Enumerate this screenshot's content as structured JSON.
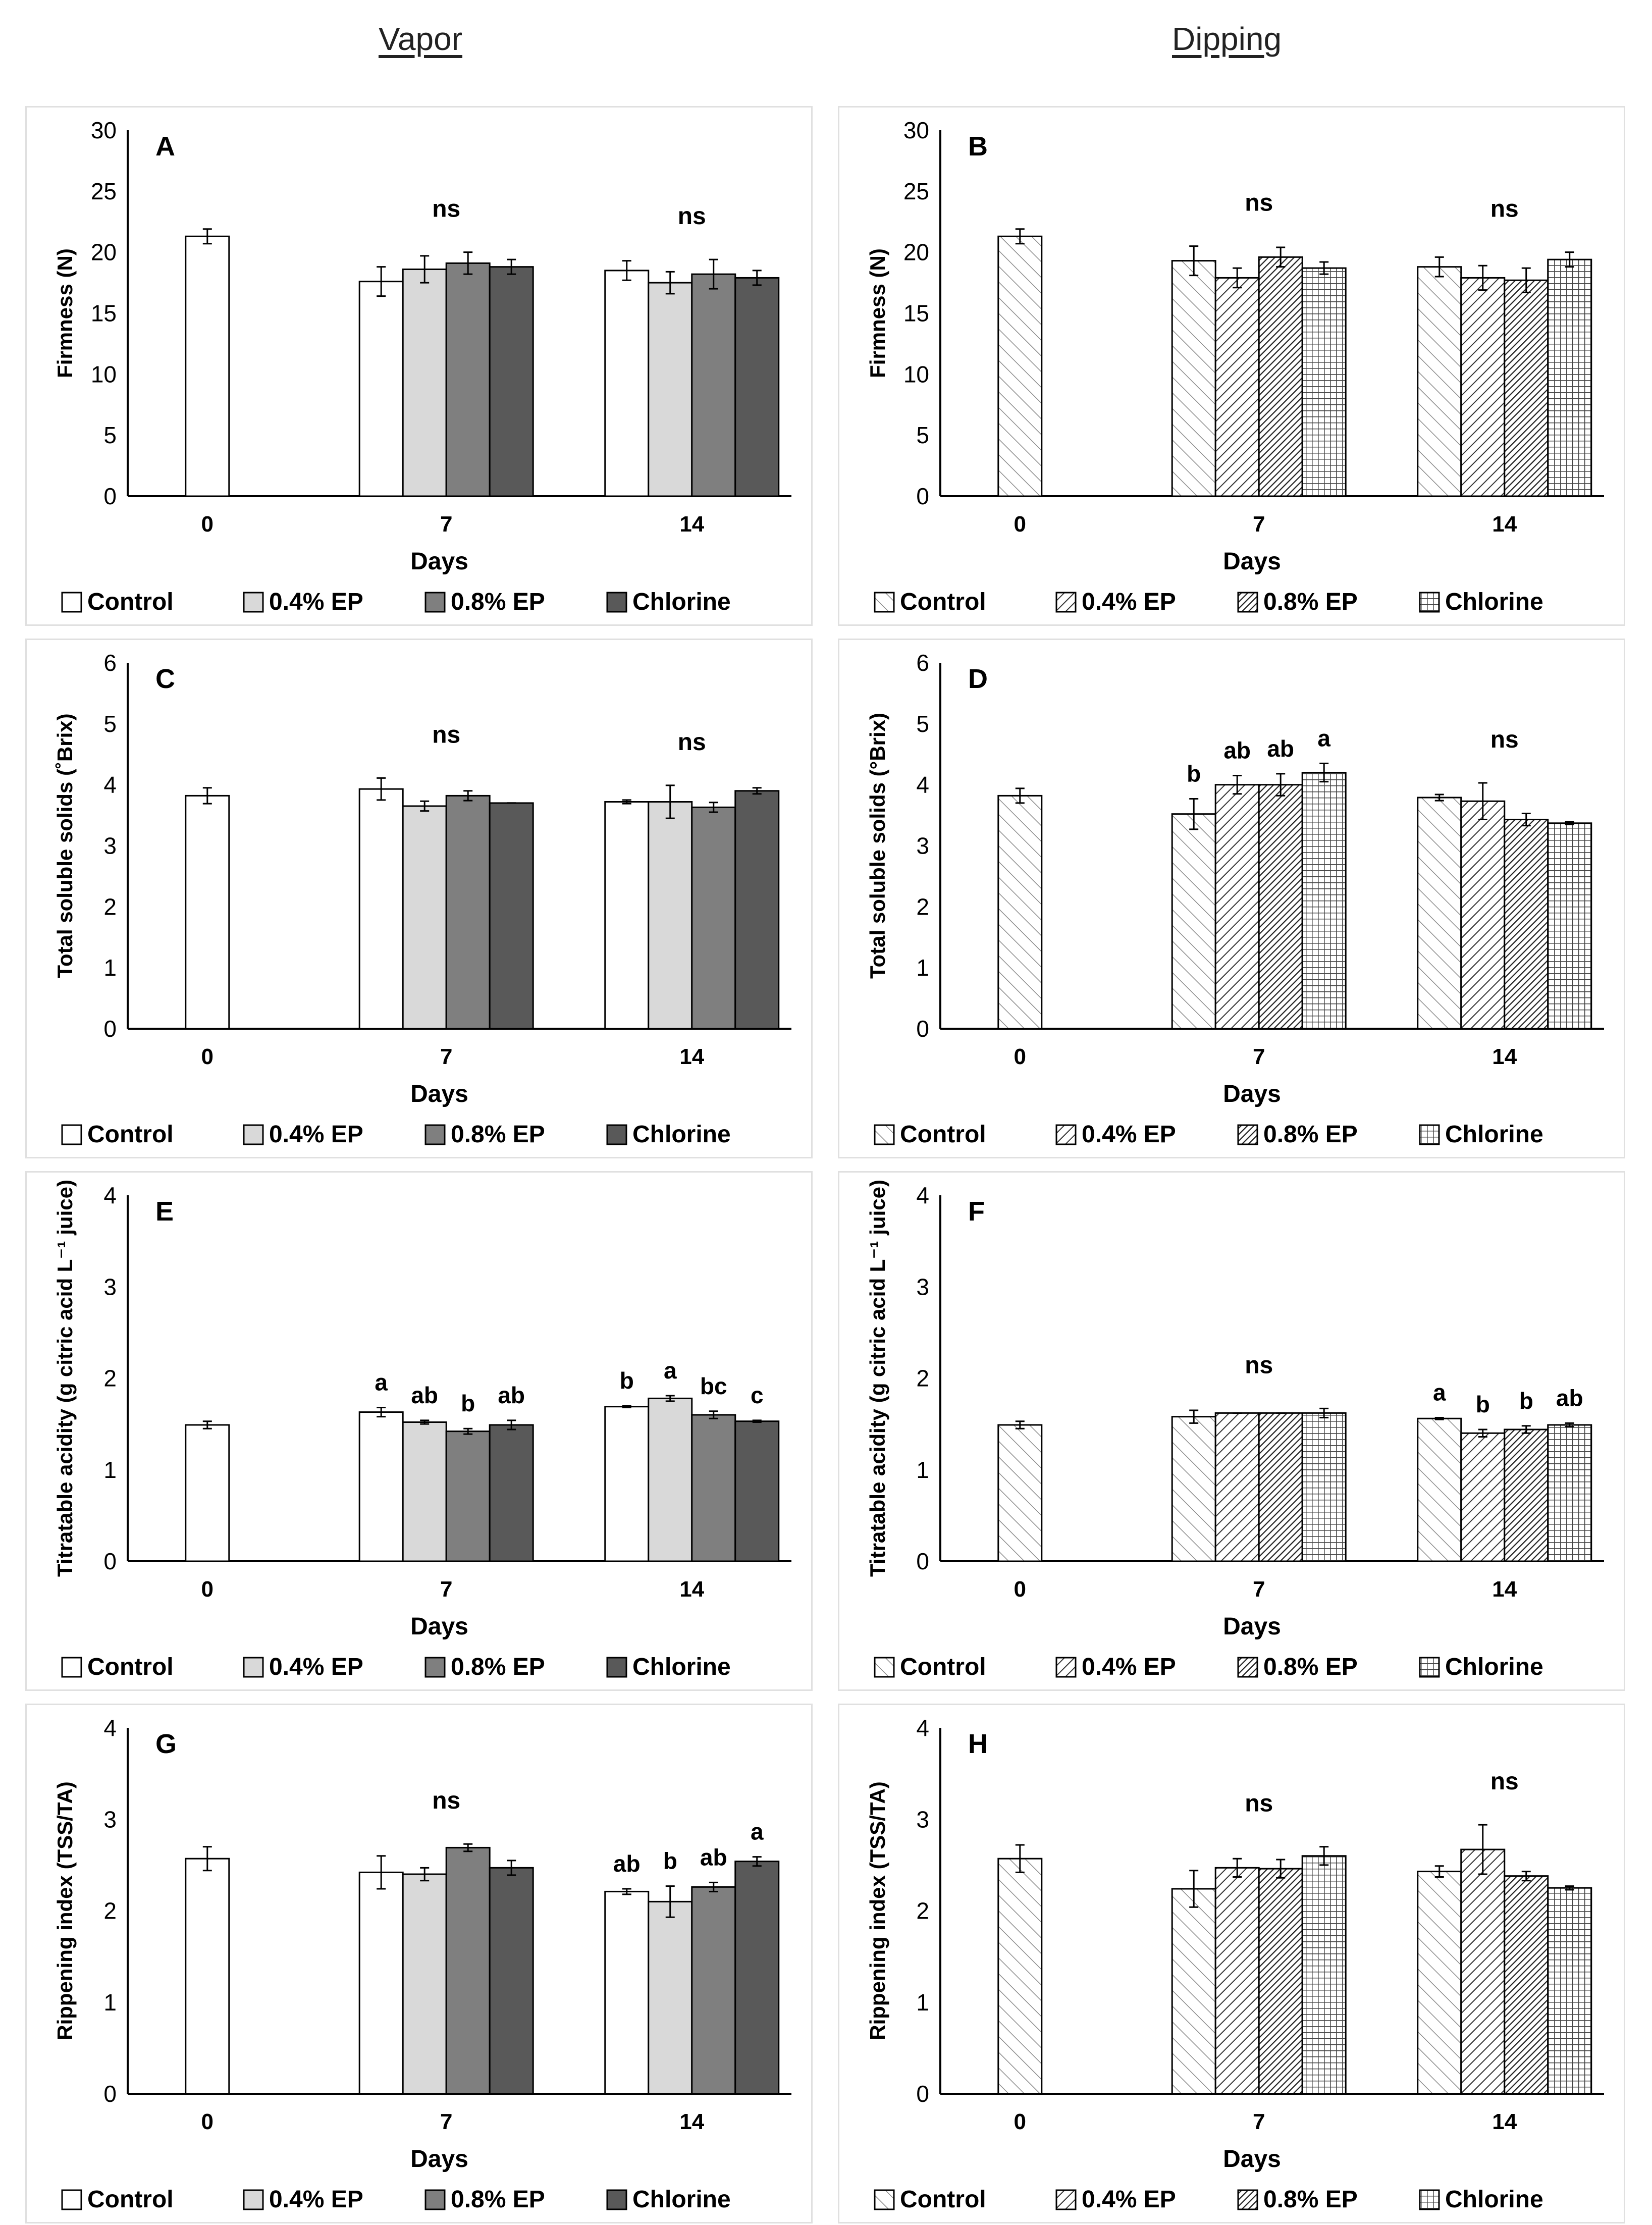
{
  "column_titles": {
    "left": "Vapor",
    "right": "Dipping"
  },
  "patterns_legend": {
    "vapor": [
      "solid-white",
      "solid-lightgray",
      "solid-gray",
      "solid-darkgray"
    ],
    "dipping": [
      "hatch-light",
      "hatch-medium",
      "hatch-dense",
      "crosshatch-grid"
    ]
  },
  "colors": {
    "control": "#ffffff",
    "ep04": "#d9d9d9",
    "ep08": "#7f7f7f",
    "chlorine": "#595959",
    "axis": "#000000"
  },
  "chart_data": [
    {
      "panel": "A",
      "style": "vapor",
      "type": "bar",
      "title": "",
      "xlabel": "Days",
      "ylabel": "Firmness (N)",
      "ylim": [
        0,
        30
      ],
      "yticks": [
        "0",
        "5",
        "10",
        "15",
        "20",
        "25",
        "30"
      ],
      "categories": [
        "0",
        "7",
        "14"
      ],
      "series": [
        {
          "name": "Control",
          "values": [
            21.3,
            17.6,
            18.5
          ],
          "errors": [
            0.6,
            1.2,
            0.8
          ]
        },
        {
          "name": "0.4% EP",
          "values": [
            null,
            18.6,
            17.5
          ],
          "errors": [
            null,
            1.1,
            0.9
          ]
        },
        {
          "name": "0.8% EP",
          "values": [
            null,
            19.1,
            18.2
          ],
          "errors": [
            null,
            0.9,
            1.2
          ]
        },
        {
          "name": "Chlorine",
          "values": [
            null,
            18.8,
            17.9
          ],
          "errors": [
            null,
            0.6,
            0.6
          ]
        }
      ],
      "labels": [
        [
          null,
          null,
          null
        ],
        [
          null,
          null,
          null
        ],
        [
          null,
          null,
          null
        ],
        [
          null,
          null,
          null
        ]
      ],
      "group_labels": [
        null,
        "ns",
        "ns"
      ]
    },
    {
      "panel": "B",
      "style": "dipping",
      "type": "bar",
      "title": "",
      "xlabel": "Days",
      "ylabel": "Firmness (N)",
      "ylim": [
        0,
        30
      ],
      "yticks": [
        "0",
        "5",
        "10",
        "15",
        "20",
        "25",
        "30"
      ],
      "categories": [
        "0",
        "7",
        "14"
      ],
      "series": [
        {
          "name": "Control",
          "values": [
            21.3,
            19.3,
            18.8
          ],
          "errors": [
            0.6,
            1.2,
            0.8
          ]
        },
        {
          "name": "0.4% EP",
          "values": [
            null,
            17.9,
            17.9
          ],
          "errors": [
            null,
            0.8,
            1.0
          ]
        },
        {
          "name": "0.8% EP",
          "values": [
            null,
            19.6,
            17.7
          ],
          "errors": [
            null,
            0.8,
            1.0
          ]
        },
        {
          "name": "Chlorine",
          "values": [
            null,
            18.7,
            19.4
          ],
          "errors": [
            null,
            0.5,
            0.6
          ]
        }
      ],
      "labels": [
        [
          null,
          null,
          null
        ],
        [
          null,
          null,
          null
        ],
        [
          null,
          null,
          null
        ],
        [
          null,
          null,
          null
        ]
      ],
      "group_labels": [
        null,
        "ns",
        "ns"
      ]
    },
    {
      "panel": "C",
      "style": "vapor",
      "type": "bar",
      "title": "",
      "xlabel": "Days",
      "ylabel": "Total soluble solids (˚Brix)",
      "ylim": [
        0,
        6
      ],
      "yticks": [
        "0",
        "1",
        "2",
        "3",
        "4",
        "5",
        "6"
      ],
      "categories": [
        "0",
        "7",
        "14"
      ],
      "series": [
        {
          "name": "Control",
          "values": [
            3.82,
            3.93,
            3.72
          ],
          "errors": [
            0.13,
            0.18,
            0.03
          ]
        },
        {
          "name": "0.4% EP",
          "values": [
            null,
            3.65,
            3.72
          ],
          "errors": [
            null,
            0.08,
            0.27
          ]
        },
        {
          "name": "0.8% EP",
          "values": [
            null,
            3.82,
            3.63
          ],
          "errors": [
            null,
            0.08,
            0.08
          ]
        },
        {
          "name": "Chlorine",
          "values": [
            null,
            3.7,
            3.9
          ],
          "errors": [
            null,
            0,
            0.05
          ]
        }
      ],
      "labels": [
        [
          null,
          null,
          null
        ],
        [
          null,
          null,
          null
        ],
        [
          null,
          null,
          null
        ],
        [
          null,
          null,
          null
        ]
      ],
      "group_labels": [
        null,
        "ns",
        "ns"
      ]
    },
    {
      "panel": "D",
      "style": "dipping",
      "type": "bar",
      "title": "",
      "xlabel": "Days",
      "ylabel": "Total soluble solids (°Brix)",
      "ylim": [
        0,
        6
      ],
      "yticks": [
        "0",
        "1",
        "2",
        "3",
        "4",
        "5",
        "6"
      ],
      "categories": [
        "0",
        "7",
        "14"
      ],
      "series": [
        {
          "name": "Control",
          "values": [
            3.82,
            3.52,
            3.79
          ],
          "errors": [
            0.12,
            0.25,
            0.05
          ]
        },
        {
          "name": "0.4% EP",
          "values": [
            null,
            4.0,
            3.73
          ],
          "errors": [
            null,
            0.15,
            0.3
          ]
        },
        {
          "name": "0.8% EP",
          "values": [
            null,
            4.0,
            3.43
          ],
          "errors": [
            null,
            0.18,
            0.1
          ]
        },
        {
          "name": "Chlorine",
          "values": [
            null,
            4.2,
            3.37
          ],
          "errors": [
            null,
            0.15,
            0.02
          ]
        }
      ],
      "labels": [
        [
          null,
          "b",
          null
        ],
        [
          null,
          "ab",
          null
        ],
        [
          null,
          "ab",
          null
        ],
        [
          null,
          "a",
          null
        ]
      ],
      "group_labels": [
        null,
        null,
        "ns"
      ]
    },
    {
      "panel": "E",
      "style": "vapor",
      "type": "bar",
      "title": "",
      "xlabel": "Days",
      "ylabel": "Titratable acidity (g citric acid L⁻¹ juice)",
      "ylim": [
        0,
        4
      ],
      "yticks": [
        "0",
        "1",
        "2",
        "3",
        "4"
      ],
      "categories": [
        "0",
        "7",
        "14"
      ],
      "series": [
        {
          "name": "Control",
          "values": [
            1.49,
            1.63,
            1.69
          ],
          "errors": [
            0.04,
            0.05,
            0.01
          ]
        },
        {
          "name": "0.4% EP",
          "values": [
            null,
            1.52,
            1.78
          ],
          "errors": [
            null,
            0.02,
            0.03
          ]
        },
        {
          "name": "0.8% EP",
          "values": [
            null,
            1.42,
            1.6
          ],
          "errors": [
            null,
            0.03,
            0.04
          ]
        },
        {
          "name": "Chlorine",
          "values": [
            null,
            1.49,
            1.53
          ],
          "errors": [
            null,
            0.05,
            0.01
          ]
        }
      ],
      "labels": [
        [
          null,
          "a",
          "b"
        ],
        [
          null,
          "ab",
          "a"
        ],
        [
          null,
          "b",
          "bc"
        ],
        [
          null,
          "ab",
          "c"
        ]
      ],
      "group_labels": [
        null,
        null,
        null
      ]
    },
    {
      "panel": "F",
      "style": "dipping",
      "type": "bar",
      "title": "",
      "xlabel": "Days",
      "ylabel": "Titratable acidity (g citric acid L⁻¹ juice)",
      "ylim": [
        0,
        4
      ],
      "yticks": [
        "0",
        "1",
        "2",
        "3",
        "4"
      ],
      "categories": [
        "0",
        "7",
        "14"
      ],
      "series": [
        {
          "name": "Control",
          "values": [
            1.49,
            1.58,
            1.56
          ],
          "errors": [
            0.04,
            0.07,
            0.01
          ]
        },
        {
          "name": "0.4% EP",
          "values": [
            null,
            1.62,
            1.4
          ],
          "errors": [
            null,
            0,
            0.04
          ]
        },
        {
          "name": "0.8% EP",
          "values": [
            null,
            1.62,
            1.44
          ],
          "errors": [
            null,
            0,
            0.04
          ]
        },
        {
          "name": "Chlorine",
          "values": [
            null,
            1.62,
            1.49
          ],
          "errors": [
            null,
            0.05,
            0.02
          ]
        }
      ],
      "labels": [
        [
          null,
          null,
          "a"
        ],
        [
          null,
          null,
          "b"
        ],
        [
          null,
          null,
          "b"
        ],
        [
          null,
          null,
          "ab"
        ]
      ],
      "group_labels": [
        null,
        "ns",
        null
      ]
    },
    {
      "panel": "G",
      "style": "vapor",
      "type": "bar",
      "title": "",
      "xlabel": "Days",
      "ylabel": "Rippening index (TSS/TA)",
      "ylim": [
        0,
        4
      ],
      "yticks": [
        "0",
        "1",
        "2",
        "3",
        "4"
      ],
      "categories": [
        "0",
        "7",
        "14"
      ],
      "series": [
        {
          "name": "Control",
          "values": [
            2.57,
            2.42,
            2.21
          ],
          "errors": [
            0.13,
            0.18,
            0.03
          ]
        },
        {
          "name": "0.4% EP",
          "values": [
            null,
            2.4,
            2.1
          ],
          "errors": [
            null,
            0.07,
            0.17
          ]
        },
        {
          "name": "0.8% EP",
          "values": [
            null,
            2.69,
            2.26
          ],
          "errors": [
            null,
            0.04,
            0.05
          ]
        },
        {
          "name": "Chlorine",
          "values": [
            null,
            2.47,
            2.54
          ],
          "errors": [
            null,
            0.08,
            0.05
          ]
        }
      ],
      "labels": [
        [
          null,
          null,
          "ab"
        ],
        [
          null,
          null,
          "b"
        ],
        [
          null,
          null,
          "ab"
        ],
        [
          null,
          null,
          "a"
        ]
      ],
      "group_labels": [
        null,
        "ns",
        null
      ]
    },
    {
      "panel": "H",
      "style": "dipping",
      "type": "bar",
      "title": "",
      "xlabel": "Days",
      "ylabel": "Rippening index (TSS/TA)",
      "ylim": [
        0,
        4
      ],
      "yticks": [
        "0",
        "1",
        "2",
        "3",
        "4"
      ],
      "categories": [
        "0",
        "7",
        "14"
      ],
      "series": [
        {
          "name": "Control",
          "values": [
            2.57,
            2.24,
            2.43
          ],
          "errors": [
            0.15,
            0.2,
            0.06
          ]
        },
        {
          "name": "0.4% EP",
          "values": [
            null,
            2.47,
            2.67
          ],
          "errors": [
            null,
            0.1,
            0.27
          ]
        },
        {
          "name": "0.8% EP",
          "values": [
            null,
            2.46,
            2.38
          ],
          "errors": [
            null,
            0.1,
            0.05
          ]
        },
        {
          "name": "Chlorine",
          "values": [
            null,
            2.6,
            2.25
          ],
          "errors": [
            null,
            0.1,
            0.02
          ]
        }
      ],
      "labels": [
        [
          null,
          null,
          null
        ],
        [
          null,
          null,
          null
        ],
        [
          null,
          null,
          null
        ],
        [
          null,
          null,
          null
        ]
      ],
      "group_labels": [
        null,
        "ns",
        "ns"
      ]
    }
  ]
}
